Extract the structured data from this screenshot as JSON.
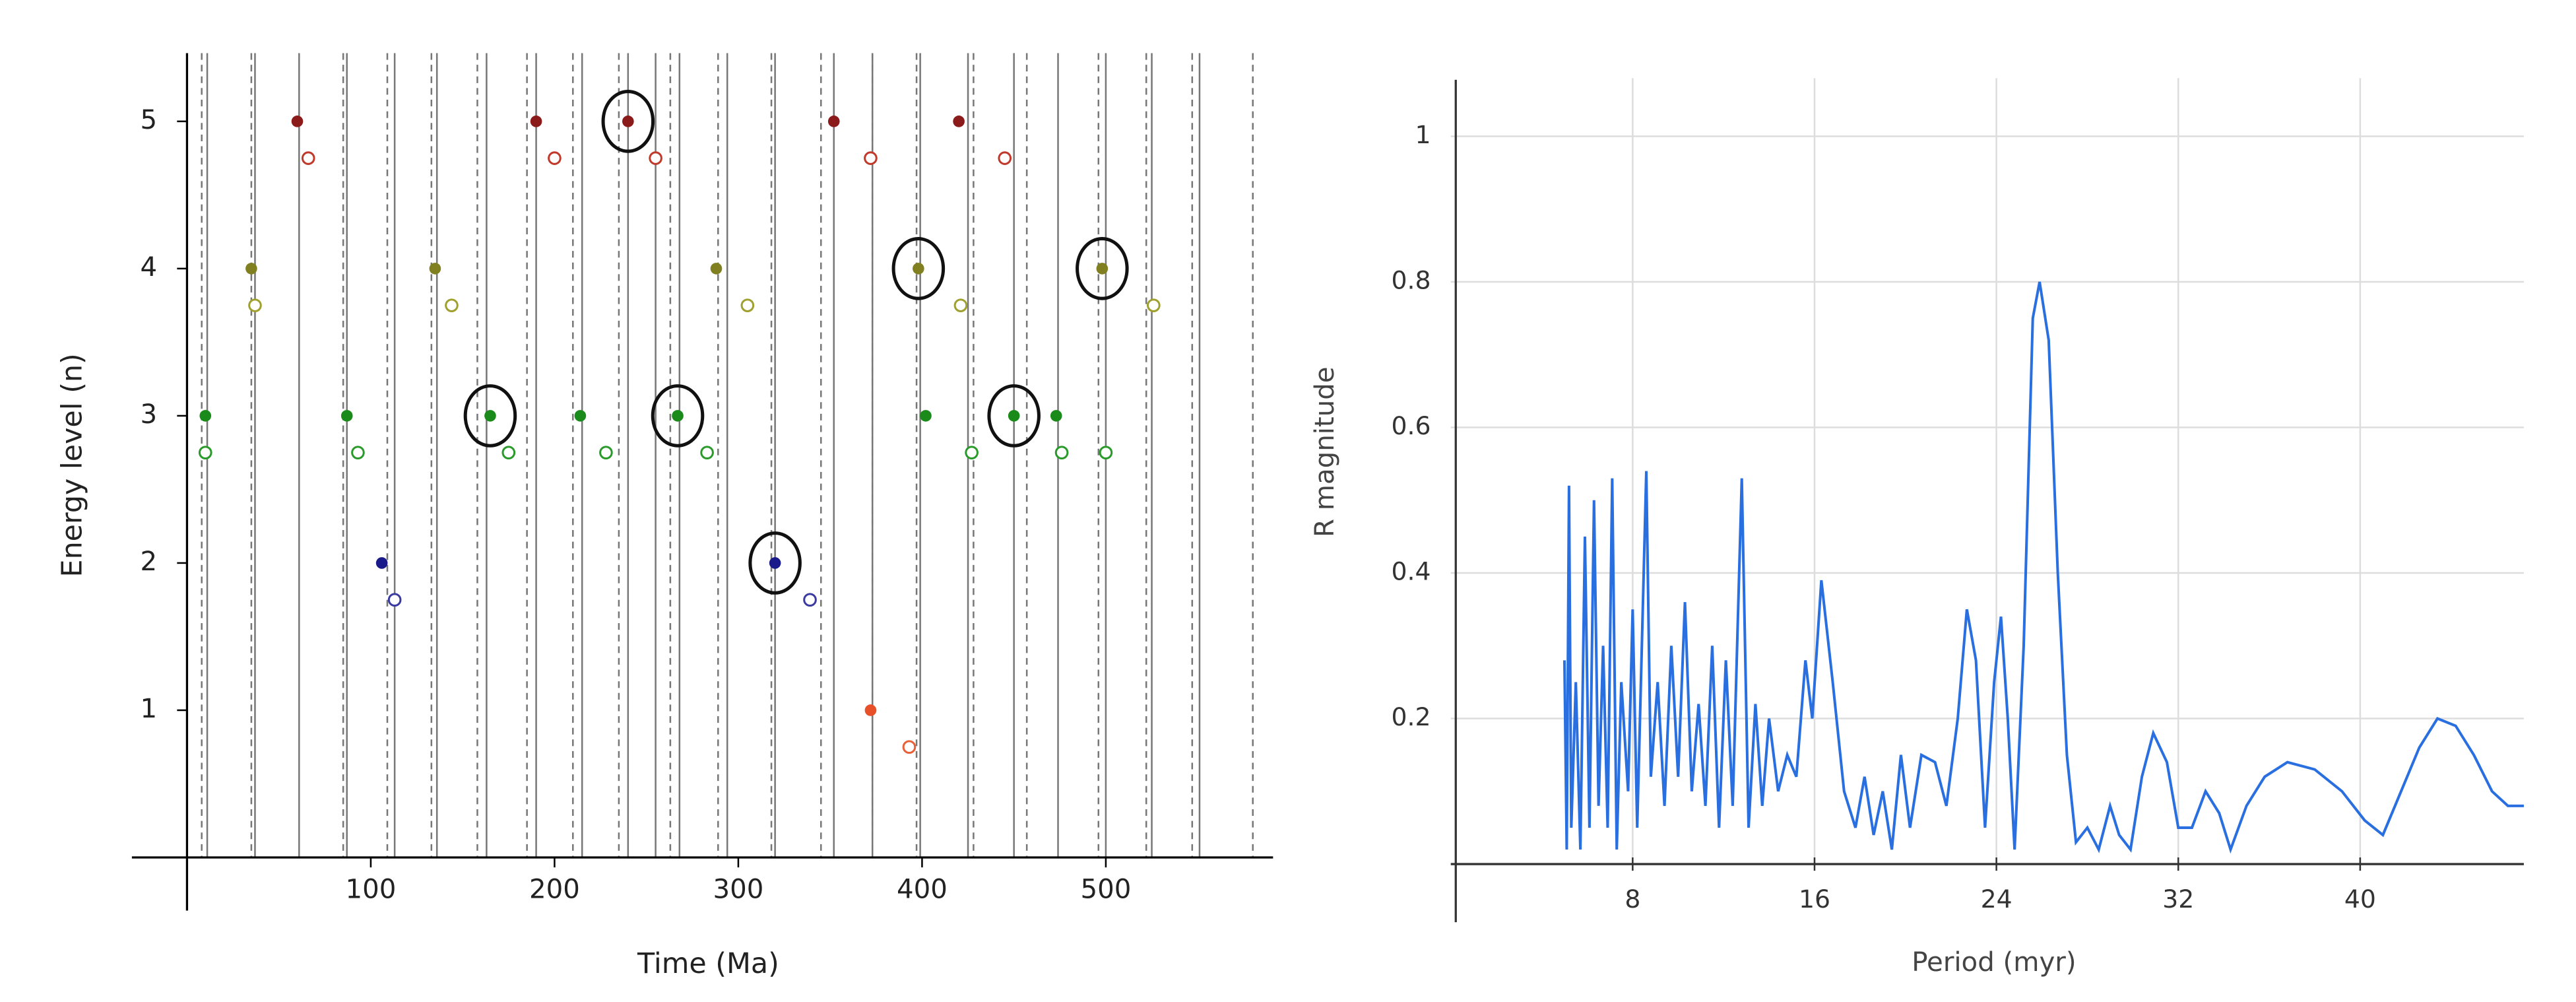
{
  "chart_data": [
    {
      "type": "scatter",
      "xlabel": "Time (Ma)",
      "ylabel": "Energy level (n)",
      "xlim": [
        -30,
        591
      ],
      "ylim": [
        0,
        5.4
      ],
      "xticks": [
        100,
        200,
        300,
        400,
        500
      ],
      "yticks": [
        1,
        2,
        3,
        4,
        5
      ],
      "solid_lines": [
        11,
        37,
        61,
        87,
        113,
        136,
        163,
        190,
        215,
        240,
        255,
        268,
        294,
        320,
        352,
        373,
        399,
        425,
        450,
        474,
        500,
        525,
        551
      ],
      "dashed_lines": [
        8,
        35,
        85,
        109,
        133,
        158,
        185,
        210,
        235,
        263,
        289,
        318,
        345,
        373,
        397,
        428,
        457,
        496,
        522,
        547,
        580
      ],
      "series": [
        {
          "color": "#8b1a1a",
          "marker": "filled",
          "x": [
            60,
            190,
            240,
            352,
            420
          ],
          "values": [
            5,
            5,
            5,
            5,
            5
          ]
        },
        {
          "color": "#c0392b",
          "marker": "open",
          "x": [
            66,
            200,
            255,
            372,
            445
          ],
          "values": [
            4.75,
            4.75,
            4.75,
            4.75,
            4.75
          ]
        },
        {
          "color": "#808020",
          "marker": "filled",
          "x": [
            35,
            135,
            288,
            398,
            498
          ],
          "values": [
            4,
            4,
            4,
            4,
            4
          ]
        },
        {
          "color": "#a0a030",
          "marker": "open",
          "x": [
            37,
            144,
            305,
            421,
            526
          ],
          "values": [
            3.75,
            3.75,
            3.75,
            3.75,
            3.75
          ]
        },
        {
          "color": "#1a8a1a",
          "marker": "filled",
          "x": [
            10,
            87,
            165,
            214,
            267,
            402,
            450,
            473
          ],
          "values": [
            3,
            3,
            3,
            3,
            3,
            3,
            3,
            3
          ]
        },
        {
          "color": "#2a9a2a",
          "marker": "open",
          "x": [
            10,
            93,
            175,
            228,
            283,
            427,
            476,
            500
          ],
          "values": [
            2.75,
            2.75,
            2.75,
            2.75,
            2.75,
            2.75,
            2.75,
            2.75
          ]
        },
        {
          "color": "#1a1a8a",
          "marker": "filled",
          "x": [
            106,
            320
          ],
          "values": [
            2,
            2
          ]
        },
        {
          "color": "#3a3aa0",
          "marker": "open",
          "x": [
            113,
            339
          ],
          "values": [
            1.75,
            1.75
          ]
        },
        {
          "color": "#e8502a",
          "marker": "filled",
          "x": [
            372
          ],
          "values": [
            1
          ]
        },
        {
          "color": "#e8603a",
          "marker": "open",
          "x": [
            393
          ],
          "values": [
            0.75
          ]
        },
        {
          "color": "#111111",
          "marker": "ring",
          "x": [
            240,
            165,
            267,
            320,
            398,
            450,
            498
          ],
          "values": [
            5,
            3,
            3,
            2,
            4,
            3,
            4
          ]
        }
      ]
    },
    {
      "type": "line",
      "xlabel": "Period (myr)",
      "ylabel": "R magnitude",
      "xlim": [
        0,
        47.2
      ],
      "ylim": [
        0,
        1.08
      ],
      "xticks": [
        8,
        16,
        24,
        32,
        40
      ],
      "yticks": [
        0.2,
        0.4,
        0.6,
        0.8,
        1
      ],
      "grid": true,
      "series": [
        {
          "color": "#2a6fe0",
          "x": [
            5.0,
            5.1,
            5.2,
            5.3,
            5.5,
            5.7,
            5.9,
            6.1,
            6.3,
            6.5,
            6.7,
            6.9,
            7.1,
            7.3,
            7.5,
            7.8,
            8.0,
            8.2,
            8.6,
            8.8,
            9.1,
            9.4,
            9.7,
            10.0,
            10.3,
            10.6,
            10.9,
            11.2,
            11.5,
            11.8,
            12.1,
            12.4,
            12.8,
            13.1,
            13.4,
            13.7,
            14.0,
            14.4,
            14.8,
            15.2,
            15.6,
            15.9,
            16.3,
            16.8,
            17.3,
            17.8,
            18.2,
            18.6,
            19.0,
            19.4,
            19.8,
            20.2,
            20.7,
            21.3,
            21.8,
            22.3,
            22.7,
            23.1,
            23.5,
            23.9,
            24.2,
            24.5,
            24.8,
            25.2,
            25.6,
            25.9,
            26.3,
            26.7,
            27.1,
            27.5,
            28.0,
            28.5,
            29.0,
            29.4,
            29.9,
            30.4,
            30.9,
            31.5,
            32.0,
            32.6,
            33.2,
            33.8,
            34.3,
            35.0,
            35.8,
            36.8,
            38.0,
            39.2,
            40.2,
            41.0,
            41.8,
            42.6,
            43.4,
            44.2,
            45.0,
            45.8,
            46.5,
            47.2
          ],
          "values": [
            0.28,
            0.02,
            0.52,
            0.05,
            0.25,
            0.02,
            0.45,
            0.05,
            0.5,
            0.08,
            0.3,
            0.05,
            0.53,
            0.02,
            0.25,
            0.1,
            0.35,
            0.05,
            0.54,
            0.12,
            0.25,
            0.08,
            0.3,
            0.12,
            0.36,
            0.1,
            0.22,
            0.08,
            0.3,
            0.05,
            0.28,
            0.08,
            0.53,
            0.05,
            0.22,
            0.08,
            0.2,
            0.1,
            0.15,
            0.12,
            0.28,
            0.2,
            0.39,
            0.25,
            0.1,
            0.05,
            0.12,
            0.04,
            0.1,
            0.02,
            0.15,
            0.05,
            0.15,
            0.14,
            0.08,
            0.2,
            0.35,
            0.28,
            0.05,
            0.25,
            0.34,
            0.2,
            0.02,
            0.3,
            0.75,
            0.8,
            0.72,
            0.4,
            0.15,
            0.03,
            0.05,
            0.02,
            0.08,
            0.04,
            0.02,
            0.12,
            0.18,
            0.14,
            0.05,
            0.05,
            0.1,
            0.07,
            0.02,
            0.08,
            0.12,
            0.14,
            0.13,
            0.1,
            0.06,
            0.04,
            0.1,
            0.16,
            0.2,
            0.19,
            0.15,
            0.1,
            0.08,
            0.08
          ]
        }
      ]
    }
  ]
}
